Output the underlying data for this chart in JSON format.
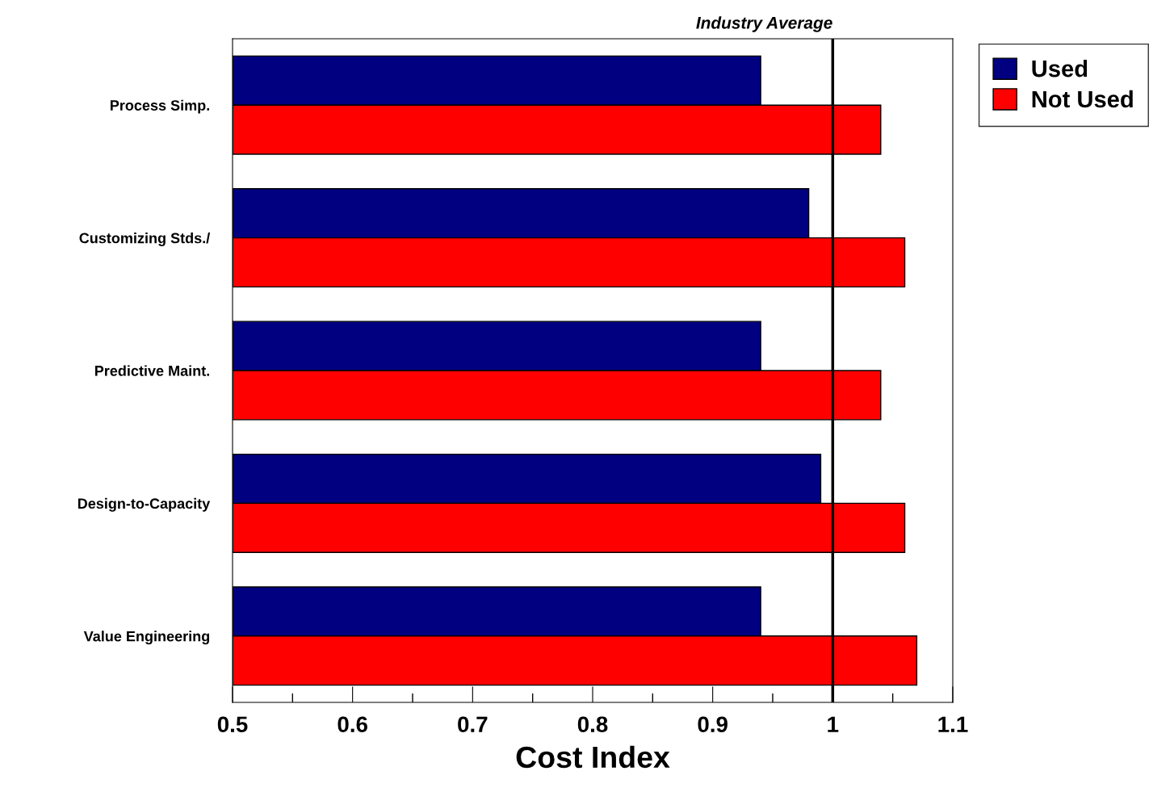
{
  "chart_data": {
    "type": "bar",
    "orientation": "horizontal",
    "xlabel": "Cost Index",
    "categories": [
      "Process Simp.",
      "Customizing Stds./",
      "Predictive Maint.",
      "Design-to-Capacity",
      "Value Engineering"
    ],
    "series": [
      {
        "name": "Used",
        "color": "#000080",
        "values": [
          0.94,
          0.98,
          0.94,
          0.99,
          0.94
        ]
      },
      {
        "name": "Not Used",
        "color": "#ff0000",
        "values": [
          1.04,
          1.06,
          1.04,
          1.06,
          1.07
        ]
      }
    ],
    "xlim": [
      0.5,
      1.1
    ],
    "xticks": [
      0.5,
      {
        "value": 0.55,
        "label": null
      },
      0.6,
      {
        "value": 0.65,
        "label": null
      },
      0.7,
      {
        "value": 0.75,
        "label": null
      },
      0.8,
      {
        "value": 0.85,
        "label": null
      },
      0.9,
      {
        "value": 0.95,
        "label": null
      },
      1,
      {
        "value": 1.05,
        "label": null
      },
      1.1
    ],
    "ref_lines": [
      {
        "axis": "x",
        "value": 1,
        "label": "Industry Average",
        "color": "#000000"
      }
    ],
    "grid": false,
    "legend": "top right"
  }
}
